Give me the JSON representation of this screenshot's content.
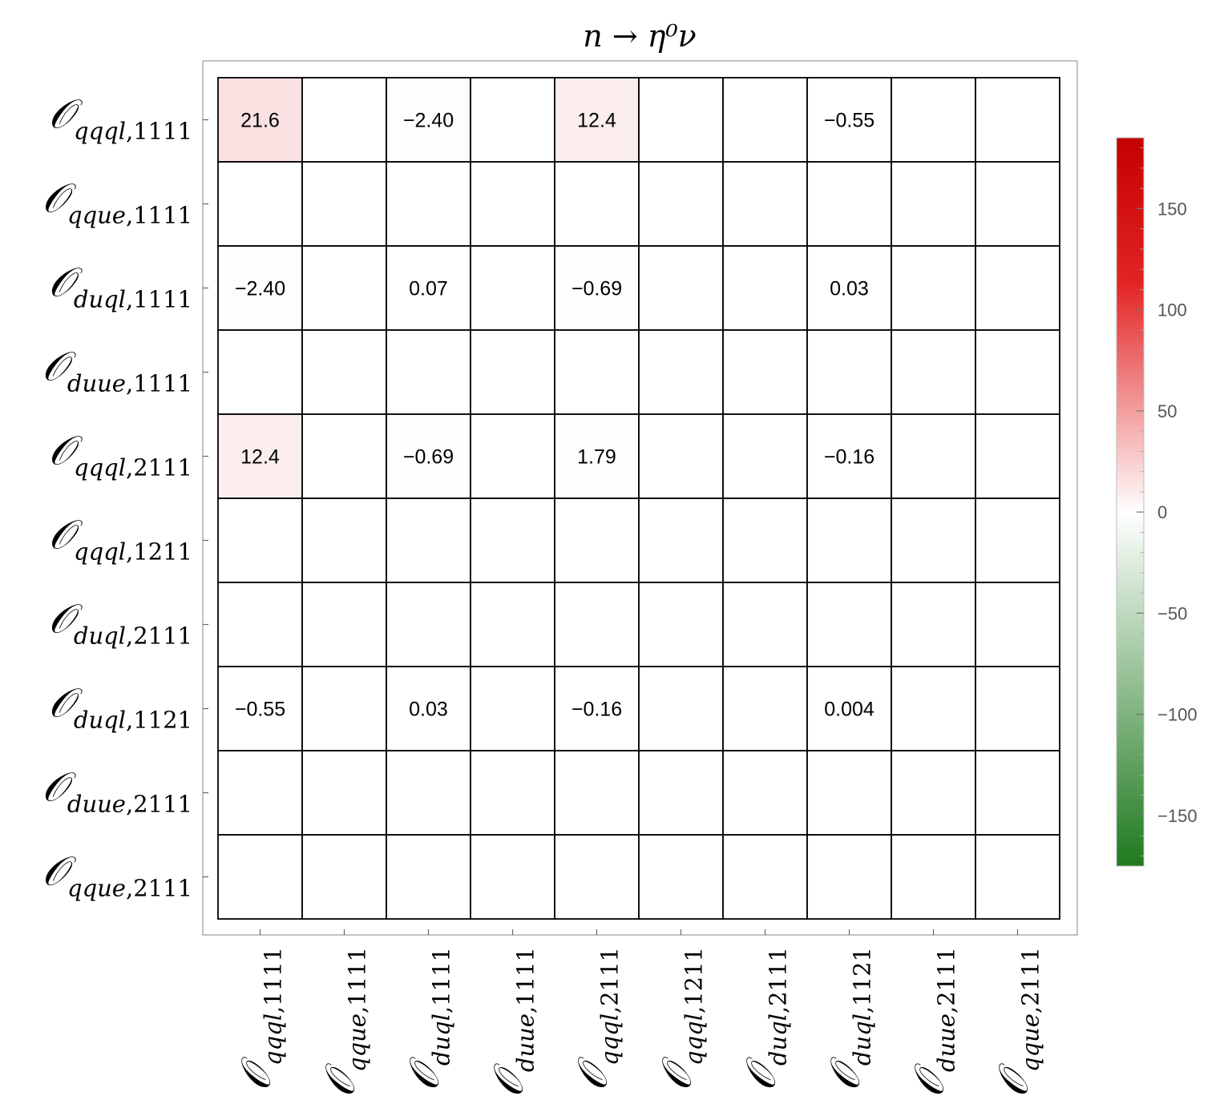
{
  "chart_data": {
    "type": "heatmap",
    "title": "n → η⁰ν",
    "labels": [
      {
        "op": "𝒪",
        "sub": "qqql",
        "idx": "1111"
      },
      {
        "op": "𝒪",
        "sub": "qque",
        "idx": "1111"
      },
      {
        "op": "𝒪",
        "sub": "duql",
        "idx": "1111"
      },
      {
        "op": "𝒪",
        "sub": "duue",
        "idx": "1111"
      },
      {
        "op": "𝒪",
        "sub": "qqql",
        "idx": "2111"
      },
      {
        "op": "𝒪",
        "sub": "qqql",
        "idx": "1211"
      },
      {
        "op": "𝒪",
        "sub": "duql",
        "idx": "2111"
      },
      {
        "op": "𝒪",
        "sub": "duql",
        "idx": "1121"
      },
      {
        "op": "𝒪",
        "sub": "duue",
        "idx": "2111"
      },
      {
        "op": "𝒪",
        "sub": "qque",
        "idx": "2111"
      }
    ],
    "matrix": [
      [
        "21.6",
        "",
        "−2.40",
        "",
        "12.4",
        "",
        "",
        "−0.55",
        "",
        ""
      ],
      [
        "",
        "",
        "",
        "",
        "",
        "",
        "",
        "",
        "",
        ""
      ],
      [
        "−2.40",
        "",
        "0.07",
        "",
        "−0.69",
        "",
        "",
        "0.03",
        "",
        ""
      ],
      [
        "",
        "",
        "",
        "",
        "",
        "",
        "",
        "",
        "",
        ""
      ],
      [
        "12.4",
        "",
        "−0.69",
        "",
        "1.79",
        "",
        "",
        "−0.16",
        "",
        ""
      ],
      [
        "",
        "",
        "",
        "",
        "",
        "",
        "",
        "",
        "",
        ""
      ],
      [
        "",
        "",
        "",
        "",
        "",
        "",
        "",
        "",
        "",
        ""
      ],
      [
        "−0.55",
        "",
        "0.03",
        "",
        "−0.16",
        "",
        "",
        "0.004",
        "",
        ""
      ],
      [
        "",
        "",
        "",
        "",
        "",
        "",
        "",
        "",
        "",
        ""
      ],
      [
        "",
        "",
        "",
        "",
        "",
        "",
        "",
        "",
        "",
        ""
      ]
    ],
    "colorbar": {
      "min": -175,
      "max": 185,
      "ticks": [
        150,
        100,
        50,
        0,
        -50,
        -100,
        -150
      ],
      "tick_labels": [
        "150",
        "100",
        "50",
        "0",
        "−50",
        "−100",
        "−150"
      ],
      "colors": {
        "low": "#1f7a1f",
        "mid": "#ffffff",
        "high": "#cc0000"
      }
    },
    "grid": true
  }
}
